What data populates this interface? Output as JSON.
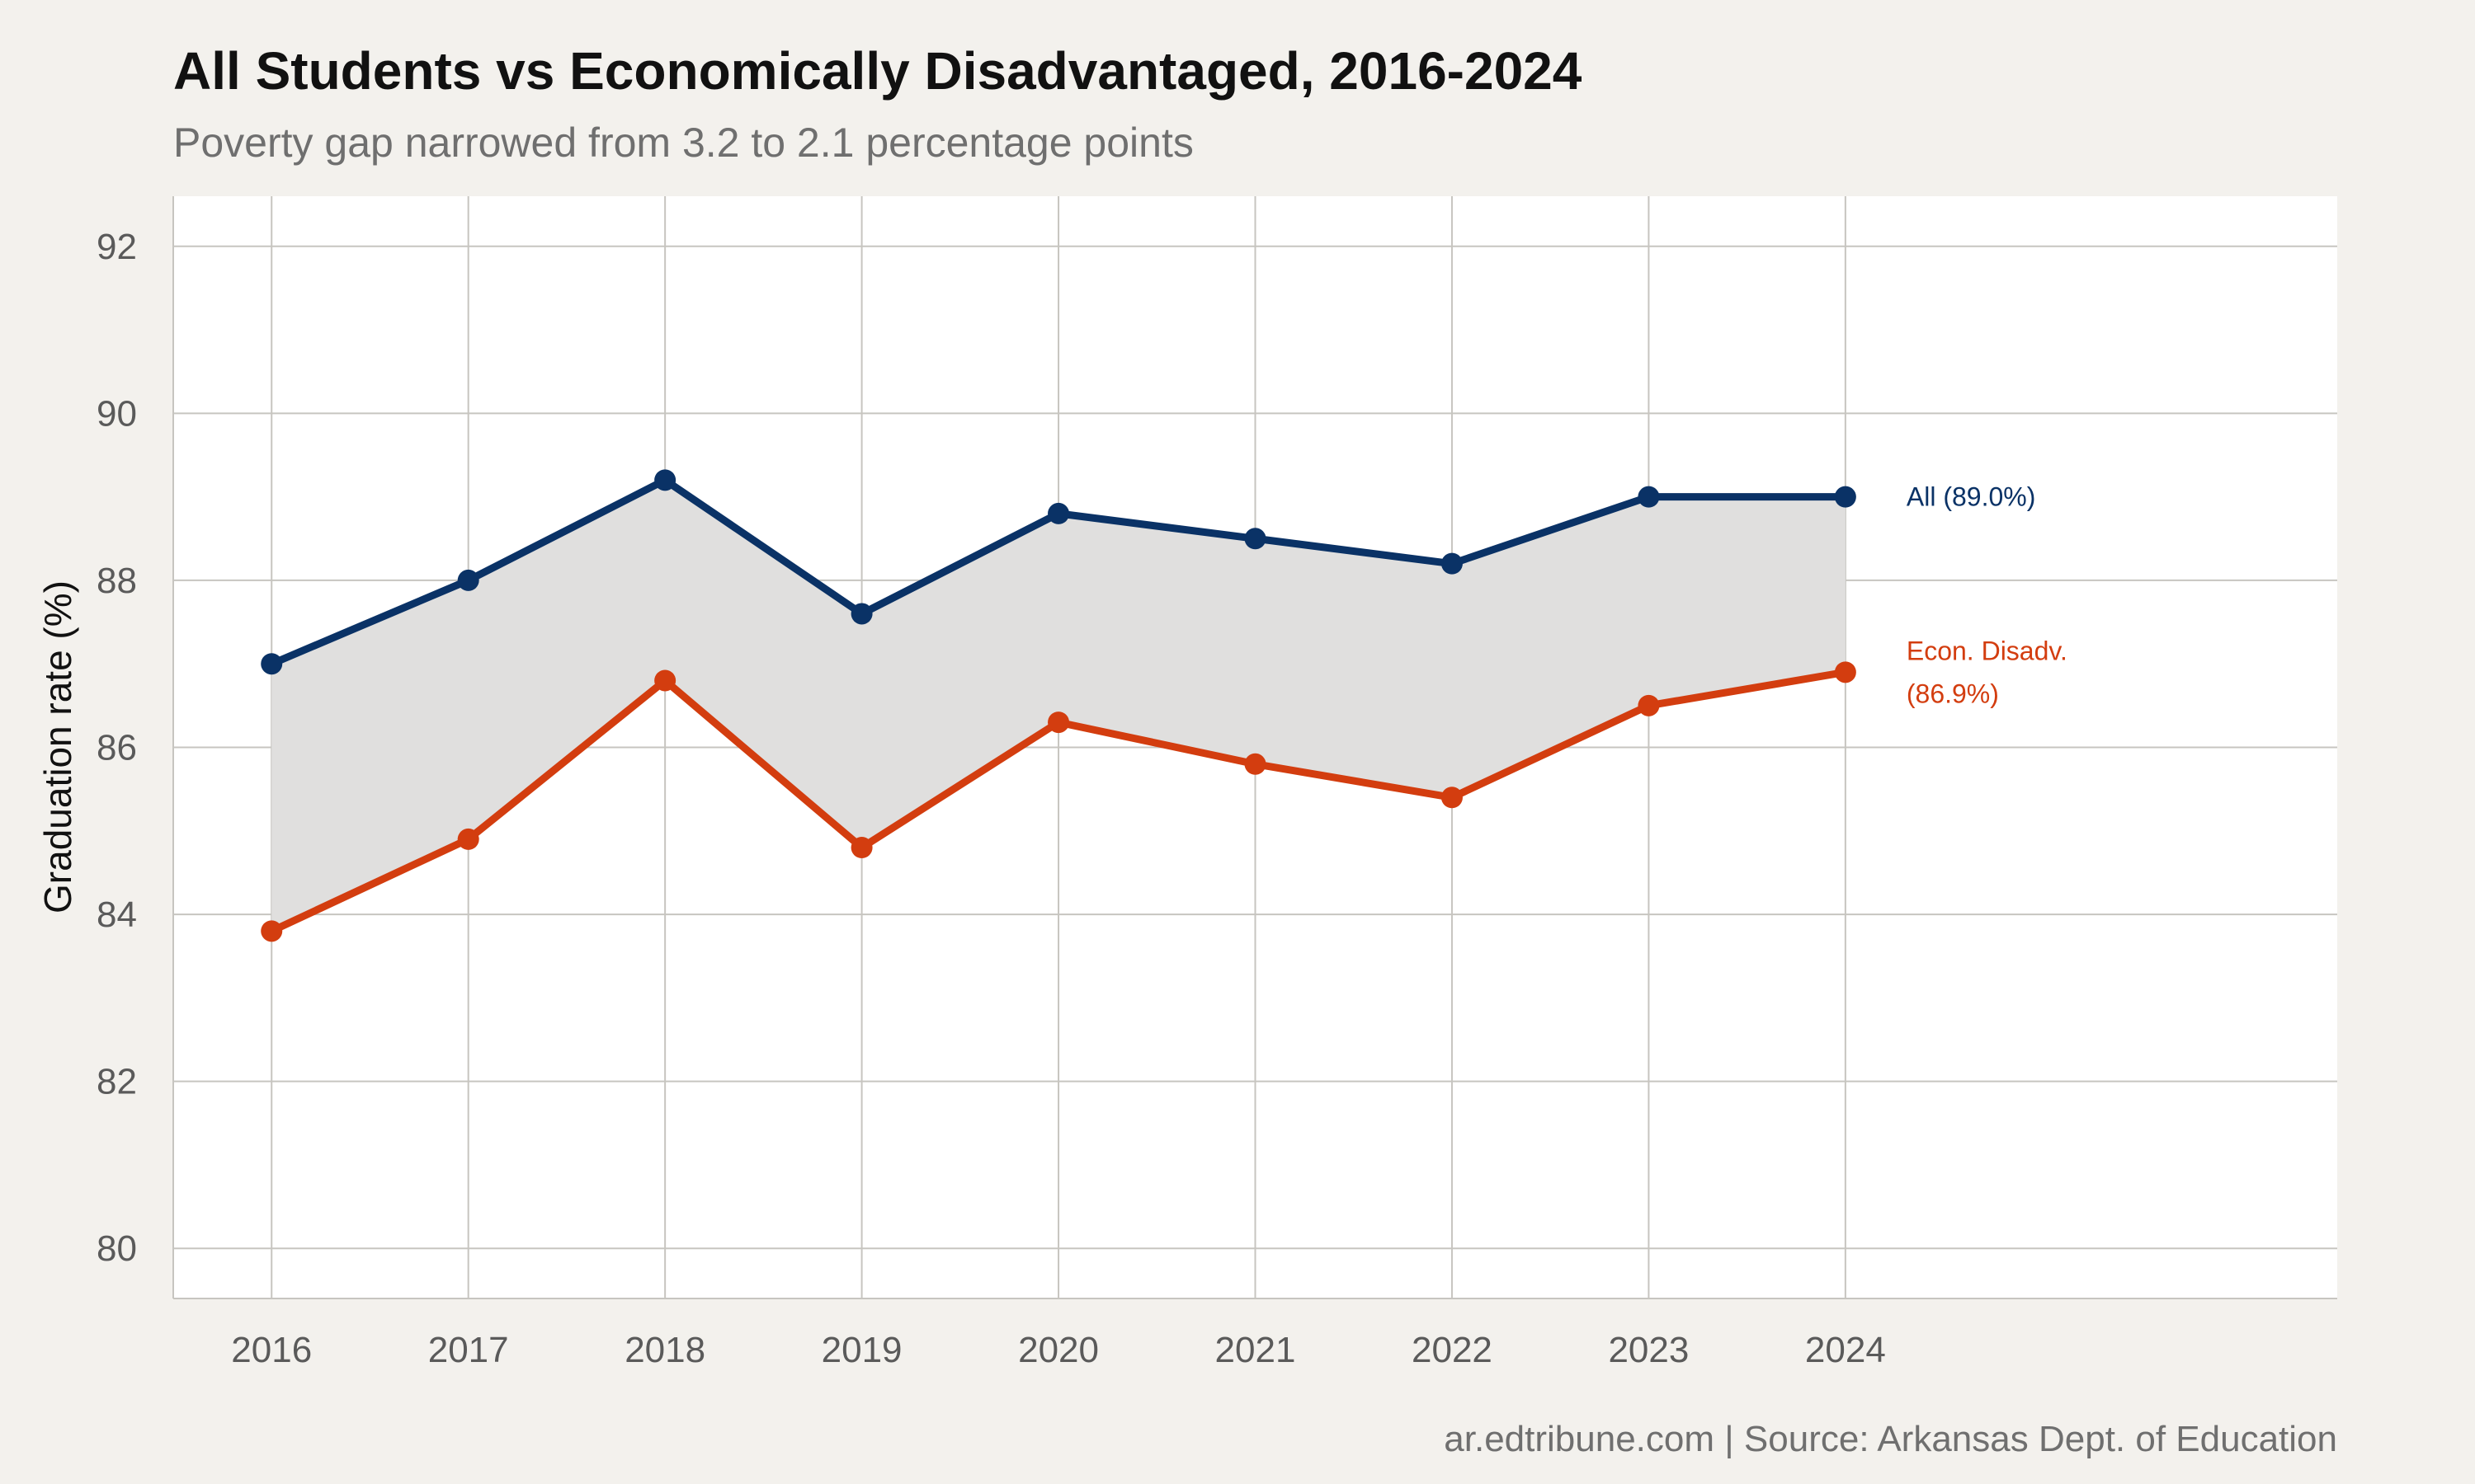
{
  "chart_data": {
    "type": "line",
    "title": "All Students vs Economically Disadvantaged, 2016-2024",
    "subtitle": "Poverty gap narrowed from 3.2 to 2.1 percentage points",
    "xlabel": "",
    "ylabel": "Graduation rate (%)",
    "x": [
      2016,
      2017,
      2018,
      2019,
      2020,
      2021,
      2022,
      2023,
      2024
    ],
    "x_tick_labels": [
      "2016",
      "2017",
      "2018",
      "2019",
      "2020",
      "2021",
      "2022",
      "2023",
      "2024"
    ],
    "xlim": [
      2015.5,
      2026.5
    ],
    "ylim": [
      79.4,
      92.6
    ],
    "y_ticks": [
      80,
      82,
      84,
      86,
      88,
      90,
      92
    ],
    "y_tick_labels": [
      "80",
      "82",
      "84",
      "86",
      "88",
      "90",
      "92"
    ],
    "grid": true,
    "shaded_gap_between_series": true,
    "series": [
      {
        "values": [
          87.0,
          88.0,
          89.2,
          87.6,
          88.8,
          88.5,
          88.2,
          89.0,
          89.0
        ],
        "color": "#0a3266",
        "end_label": [
          "All (89.0%)"
        ]
      },
      {
        "values": [
          83.8,
          84.9,
          86.8,
          84.8,
          86.3,
          85.8,
          85.4,
          86.5,
          86.9
        ],
        "color": "#d33d0f",
        "end_label": [
          "Econ. Disadv.",
          "(86.9%)"
        ]
      }
    ],
    "gap_fill_color": "#e0dfde",
    "caption": "ar.edtribune.com | Source: Arkansas Dept. of Education"
  }
}
